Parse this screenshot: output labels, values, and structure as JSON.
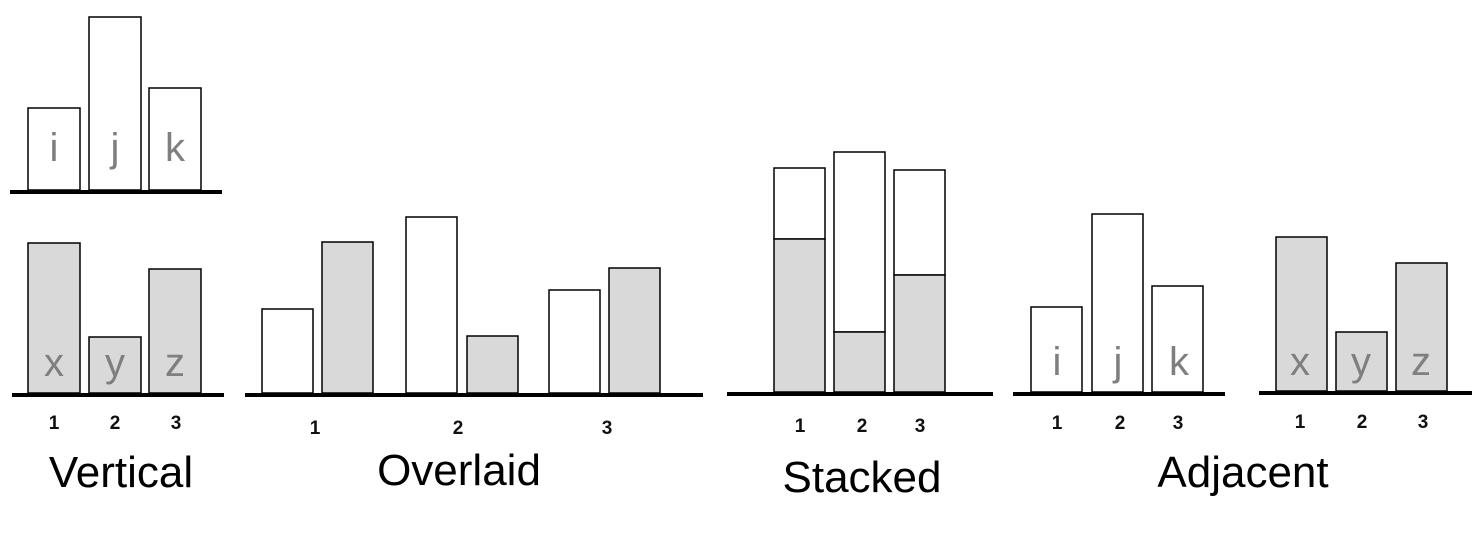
{
  "colors": {
    "white_fill": "#ffffff",
    "gray_fill": "#d9d9d9",
    "stroke": "#000000",
    "bar_label": "#7f7f7f"
  },
  "panels": {
    "vertical": {
      "title": "Vertical",
      "top_labels": [
        "i",
        "j",
        "k"
      ],
      "top_values": [
        82,
        173,
        102
      ],
      "bottom_labels": [
        "x",
        "y",
        "z"
      ],
      "bottom_values": [
        150,
        56,
        124
      ],
      "ticks": [
        "1",
        "2",
        "3"
      ]
    },
    "overlaid": {
      "title": "Overlaid",
      "white_values": [
        84,
        176,
        103
      ],
      "gray_values": [
        151,
        57,
        125
      ],
      "ticks": [
        "1",
        "2",
        "3"
      ]
    },
    "stacked": {
      "title": "Stacked",
      "white_values": [
        71,
        180,
        105
      ],
      "gray_values": [
        153,
        60,
        117
      ],
      "ticks": [
        "1",
        "2",
        "3"
      ]
    },
    "adjacent": {
      "title": "Adjacent",
      "left_labels": [
        "i",
        "j",
        "k"
      ],
      "left_values": [
        85,
        178,
        106
      ],
      "left_ticks": [
        "1",
        "2",
        "3"
      ],
      "right_labels": [
        "x",
        "y",
        "z"
      ],
      "right_values": [
        154,
        59,
        128
      ],
      "right_ticks": [
        "1",
        "2",
        "3"
      ]
    }
  }
}
